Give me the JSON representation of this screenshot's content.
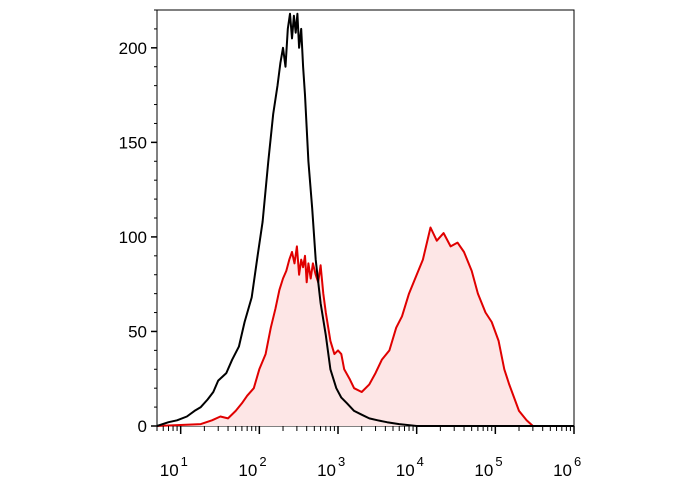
{
  "chart_data": {
    "type": "area",
    "x_scale": "log",
    "xlim": [
      5,
      1000000
    ],
    "ylim": [
      0,
      220
    ],
    "grid": false,
    "title": "",
    "xlabel": "",
    "ylabel": "",
    "y_ticks": [
      {
        "value": 0,
        "label": "0"
      },
      {
        "value": 50,
        "label": "50"
      },
      {
        "value": 100,
        "label": "100"
      },
      {
        "value": 150,
        "label": "150"
      },
      {
        "value": 200,
        "label": "200"
      }
    ],
    "x_ticks": [
      {
        "value": 10,
        "base": "10",
        "exp": "1"
      },
      {
        "value": 100,
        "base": "10",
        "exp": "2"
      },
      {
        "value": 1000,
        "base": "10",
        "exp": "3"
      },
      {
        "value": 10000,
        "base": "10",
        "exp": "4"
      },
      {
        "value": 100000,
        "base": "10",
        "exp": "5"
      },
      {
        "value": 1000000,
        "base": "10",
        "exp": "6"
      }
    ],
    "series": [
      {
        "line_color": "#e00000",
        "fill_color": "#fde6e6",
        "filled": true,
        "points": [
          [
            5,
            0
          ],
          [
            18,
            1
          ],
          [
            25,
            3
          ],
          [
            32,
            5
          ],
          [
            40,
            4
          ],
          [
            50,
            8
          ],
          [
            60,
            12
          ],
          [
            70,
            16
          ],
          [
            85,
            20
          ],
          [
            100,
            30
          ],
          [
            120,
            38
          ],
          [
            140,
            52
          ],
          [
            160,
            62
          ],
          [
            180,
            72
          ],
          [
            200,
            78
          ],
          [
            220,
            82
          ],
          [
            240,
            88
          ],
          [
            260,
            92
          ],
          [
            280,
            86
          ],
          [
            300,
            95
          ],
          [
            320,
            80
          ],
          [
            340,
            88
          ],
          [
            360,
            84
          ],
          [
            380,
            90
          ],
          [
            400,
            76
          ],
          [
            420,
            86
          ],
          [
            450,
            78
          ],
          [
            480,
            86
          ],
          [
            520,
            80
          ],
          [
            560,
            76
          ],
          [
            600,
            85
          ],
          [
            650,
            70
          ],
          [
            700,
            60
          ],
          [
            800,
            45
          ],
          [
            900,
            38
          ],
          [
            1000,
            40
          ],
          [
            1100,
            38
          ],
          [
            1200,
            30
          ],
          [
            1400,
            25
          ],
          [
            1600,
            20
          ],
          [
            2000,
            18
          ],
          [
            2500,
            22
          ],
          [
            3000,
            28
          ],
          [
            3600,
            35
          ],
          [
            4500,
            40
          ],
          [
            5500,
            52
          ],
          [
            6500,
            58
          ],
          [
            8000,
            70
          ],
          [
            10000,
            80
          ],
          [
            12000,
            88
          ],
          [
            15000,
            105
          ],
          [
            18000,
            98
          ],
          [
            22000,
            102
          ],
          [
            27000,
            95
          ],
          [
            33000,
            97
          ],
          [
            40000,
            92
          ],
          [
            50000,
            82
          ],
          [
            60000,
            70
          ],
          [
            75000,
            60
          ],
          [
            90000,
            55
          ],
          [
            110000,
            45
          ],
          [
            130000,
            30
          ],
          [
            150000,
            22
          ],
          [
            200000,
            8
          ],
          [
            250000,
            3
          ],
          [
            300000,
            0
          ],
          [
            1000000,
            0
          ]
        ]
      },
      {
        "line_color": "#000000",
        "filled": false,
        "points": [
          [
            5,
            0
          ],
          [
            7,
            2
          ],
          [
            9,
            3
          ],
          [
            12,
            5
          ],
          [
            15,
            8
          ],
          [
            18,
            10
          ],
          [
            22,
            14
          ],
          [
            26,
            18
          ],
          [
            30,
            24
          ],
          [
            38,
            28
          ],
          [
            45,
            35
          ],
          [
            55,
            42
          ],
          [
            65,
            55
          ],
          [
            80,
            68
          ],
          [
            95,
            90
          ],
          [
            110,
            108
          ],
          [
            130,
            140
          ],
          [
            150,
            165
          ],
          [
            170,
            180
          ],
          [
            185,
            192
          ],
          [
            200,
            200
          ],
          [
            215,
            190
          ],
          [
            230,
            210
          ],
          [
            245,
            218
          ],
          [
            260,
            205
          ],
          [
            275,
            217
          ],
          [
            290,
            208
          ],
          [
            305,
            218
          ],
          [
            320,
            200
          ],
          [
            340,
            210
          ],
          [
            360,
            190
          ],
          [
            380,
            175
          ],
          [
            420,
            140
          ],
          [
            470,
            115
          ],
          [
            520,
            88
          ],
          [
            600,
            65
          ],
          [
            700,
            48
          ],
          [
            800,
            30
          ],
          [
            950,
            20
          ],
          [
            1100,
            15
          ],
          [
            1300,
            12
          ],
          [
            1600,
            8
          ],
          [
            2000,
            6
          ],
          [
            2500,
            4
          ],
          [
            3200,
            3
          ],
          [
            4200,
            2
          ],
          [
            6000,
            1
          ],
          [
            10000,
            0
          ],
          [
            1000000,
            0
          ]
        ]
      }
    ]
  }
}
